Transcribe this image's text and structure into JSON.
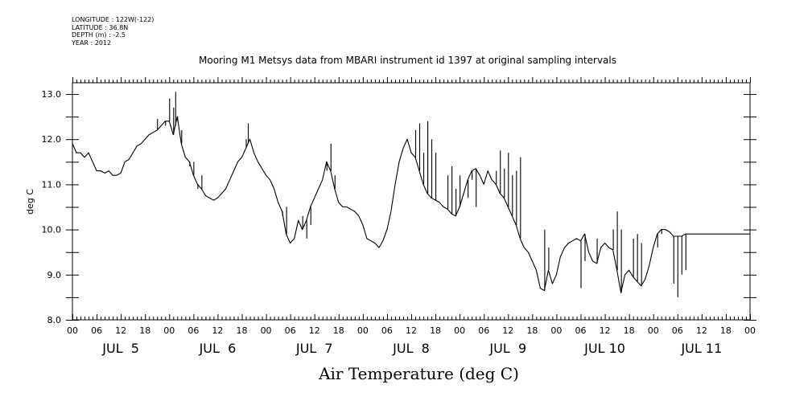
{
  "meta": {
    "longitude": "LONGITUDE : 122W(-122)",
    "latitude": "LATITUDE : 36.8N",
    "depth": "DEPTH (m) : -2.5",
    "year": "YEAR : 2012"
  },
  "chart_data": {
    "type": "line",
    "title": "Mooring M1 Metsys data from MBARI instrument id 1397 at original sampling intervals",
    "xlabel": "Air Temperature (deg C)",
    "ylabel": "deg C",
    "ylim": [
      8.0,
      13.25
    ],
    "y_ticks": [
      "8.0",
      "9.0",
      "10.0",
      "11.0",
      "12.0",
      "13.0"
    ],
    "x_unit": "hours since JUL 5 00:00",
    "xlim": [
      0,
      168
    ],
    "x_hour_tick_labels": [
      "00",
      "06",
      "12",
      "18",
      "00",
      "06",
      "12",
      "18",
      "00",
      "06",
      "12",
      "18",
      "00",
      "06",
      "12",
      "18",
      "00",
      "06",
      "12",
      "18",
      "00",
      "06",
      "12",
      "18",
      "00",
      "06",
      "12",
      "18",
      "00"
    ],
    "day_labels": [
      "JUL  5",
      "JUL  6",
      "JUL  7",
      "JUL  8",
      "JUL  9",
      "JUL 10",
      "JUL 11"
    ],
    "grid": false,
    "series": [
      {
        "color": "#000000",
        "x": [
          0,
          1,
          2,
          3,
          4,
          5,
          6,
          7,
          8,
          9,
          10,
          11,
          12,
          13,
          14,
          15,
          16,
          17,
          18,
          19,
          20,
          21,
          22,
          23,
          24,
          25,
          26,
          27,
          28,
          29,
          30,
          31,
          32,
          33,
          34,
          35,
          36,
          37,
          38,
          39,
          40,
          41,
          42,
          43,
          44,
          45,
          46,
          47,
          48,
          49,
          50,
          51,
          52,
          53,
          54,
          55,
          56,
          57,
          58,
          59,
          60,
          61,
          62,
          63,
          64,
          65,
          66,
          67,
          68,
          69,
          70,
          71,
          72,
          73,
          74,
          75,
          76,
          77,
          78,
          79,
          80,
          81,
          82,
          83,
          84,
          85,
          86,
          87,
          88,
          89,
          90,
          91,
          92,
          93,
          94,
          95,
          96,
          97,
          98,
          99,
          100,
          101,
          102,
          103,
          104,
          105,
          106,
          107,
          108,
          109,
          110,
          111,
          112,
          113,
          114,
          115,
          116,
          117,
          118,
          119,
          120,
          121,
          122,
          123,
          124,
          125,
          126,
          127,
          128,
          129,
          130,
          131,
          132,
          133,
          134,
          135,
          136,
          137,
          138,
          139,
          140,
          141,
          142,
          143,
          144,
          145,
          146,
          147,
          148,
          149,
          150,
          151,
          152,
          153,
          154,
          155,
          156,
          157,
          158,
          159,
          160,
          161,
          162,
          163,
          164,
          165,
          166,
          167,
          168
        ],
        "y": [
          11.9,
          11.7,
          11.7,
          11.6,
          11.7,
          11.5,
          11.3,
          11.3,
          11.25,
          11.3,
          11.2,
          11.2,
          11.25,
          11.5,
          11.55,
          11.7,
          11.85,
          11.9,
          12.0,
          12.1,
          12.15,
          12.2,
          12.3,
          12.4,
          12.4,
          12.1,
          12.5,
          11.9,
          11.6,
          11.5,
          11.2,
          11.0,
          10.9,
          10.75,
          10.7,
          10.65,
          10.7,
          10.8,
          10.9,
          11.1,
          11.3,
          11.5,
          11.6,
          11.8,
          12.0,
          11.7,
          11.5,
          11.35,
          11.2,
          11.1,
          10.9,
          10.6,
          10.4,
          9.9,
          9.7,
          9.8,
          10.2,
          10.0,
          10.2,
          10.5,
          10.7,
          10.9,
          11.1,
          11.5,
          11.3,
          10.9,
          10.6,
          10.5,
          10.5,
          10.45,
          10.4,
          10.3,
          10.1,
          9.8,
          9.75,
          9.7,
          9.6,
          9.75,
          10.0,
          10.4,
          11.0,
          11.5,
          11.8,
          12.0,
          11.7,
          11.6,
          11.3,
          11.0,
          10.8,
          10.7,
          10.65,
          10.6,
          10.5,
          10.45,
          10.35,
          10.3,
          10.5,
          10.8,
          11.1,
          11.3,
          11.35,
          11.2,
          11.0,
          11.3,
          11.1,
          11.0,
          10.8,
          10.7,
          10.5,
          10.3,
          10.1,
          9.8,
          9.6,
          9.5,
          9.3,
          9.1,
          8.7,
          8.65,
          9.1,
          8.8,
          9.0,
          9.4,
          9.6,
          9.7,
          9.75,
          9.8,
          9.75,
          9.9,
          9.5,
          9.3,
          9.25,
          9.6,
          9.7,
          9.6,
          9.55,
          9.1,
          8.6,
          9.0,
          9.1,
          8.95,
          8.85,
          8.75,
          8.9,
          9.2,
          9.6,
          9.9,
          10.0,
          10.0,
          9.95,
          9.85,
          9.85,
          9.85,
          9.9,
          9.9,
          9.9,
          9.9,
          9.9,
          9.9,
          9.9,
          9.9,
          9.9,
          9.9,
          9.9,
          9.9,
          9.9,
          9.9,
          9.9,
          9.9,
          9.9
        ]
      }
    ],
    "spikes": [
      [
        21,
        12.45
      ],
      [
        23,
        12.3
      ],
      [
        24,
        12.9
      ],
      [
        25,
        12.7
      ],
      [
        25.5,
        13.05
      ],
      [
        26,
        12.4
      ],
      [
        27,
        12.2
      ],
      [
        29,
        11.4
      ],
      [
        30,
        11.5
      ],
      [
        31,
        10.9
      ],
      [
        32,
        11.2
      ],
      [
        43,
        12.0
      ],
      [
        43.5,
        12.35
      ],
      [
        44,
        12.0
      ],
      [
        52,
        10.3
      ],
      [
        53,
        10.5
      ],
      [
        54,
        9.7
      ],
      [
        57,
        10.3
      ],
      [
        58,
        9.8
      ],
      [
        59,
        10.1
      ],
      [
        63,
        11.3
      ],
      [
        64,
        11.9
      ],
      [
        65,
        11.2
      ],
      [
        85,
        12.2
      ],
      [
        86,
        12.35
      ],
      [
        87,
        11.7
      ],
      [
        88,
        12.4
      ],
      [
        89,
        12.0
      ],
      [
        90,
        11.7
      ],
      [
        93,
        11.2
      ],
      [
        94,
        11.4
      ],
      [
        95,
        10.9
      ],
      [
        96,
        11.2
      ],
      [
        98,
        10.7
      ],
      [
        99,
        11.1
      ],
      [
        100,
        10.5
      ],
      [
        105,
        11.3
      ],
      [
        106,
        11.75
      ],
      [
        107,
        11.35
      ],
      [
        108,
        11.7
      ],
      [
        109,
        11.2
      ],
      [
        110,
        11.3
      ],
      [
        111,
        11.6
      ],
      [
        117,
        10.0
      ],
      [
        118,
        9.6
      ],
      [
        126,
        8.7
      ],
      [
        127,
        9.3
      ],
      [
        130,
        9.8
      ],
      [
        134,
        10.0
      ],
      [
        135,
        10.4
      ],
      [
        136,
        10.0
      ],
      [
        139,
        9.8
      ],
      [
        140,
        9.9
      ],
      [
        141,
        9.7
      ],
      [
        145,
        9.6
      ],
      [
        146,
        9.9
      ],
      [
        149,
        8.8
      ],
      [
        150,
        8.5
      ],
      [
        151,
        9.0
      ],
      [
        152,
        9.1
      ]
    ]
  }
}
